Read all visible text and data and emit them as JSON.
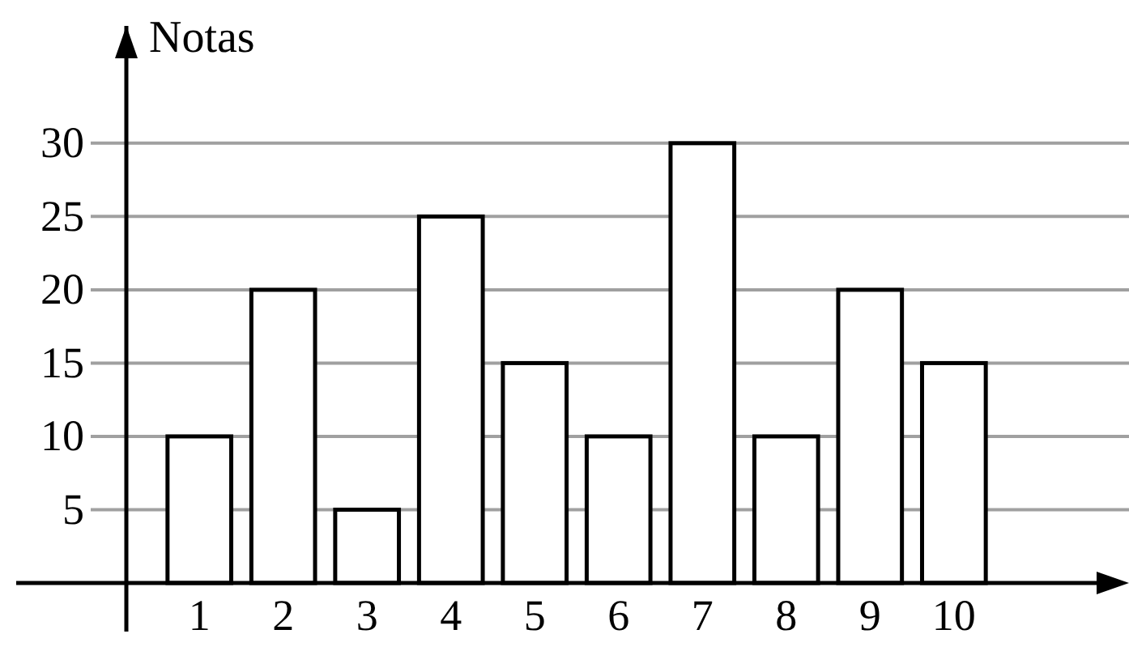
{
  "chart_data": {
    "type": "bar",
    "ylabel": "Notas",
    "categories": [
      "1",
      "2",
      "3",
      "4",
      "5",
      "6",
      "7",
      "8",
      "9",
      "10"
    ],
    "values": [
      10,
      20,
      5,
      25,
      15,
      10,
      30,
      10,
      20,
      15
    ],
    "color": "#ffffff",
    "ylim": [
      0,
      38
    ],
    "yticks": [
      5,
      10,
      15,
      20,
      25,
      30
    ],
    "grid": "y"
  }
}
